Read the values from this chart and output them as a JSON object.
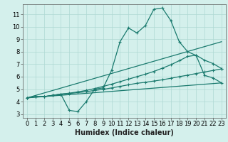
{
  "x_humidex": [
    0,
    1,
    2,
    3,
    4,
    5,
    6,
    7,
    8,
    9,
    10,
    11,
    12,
    13,
    14,
    15,
    16,
    17,
    18,
    19,
    20,
    21,
    22,
    23
  ],
  "line1_y": [
    4.3,
    4.4,
    4.4,
    4.5,
    4.6,
    3.3,
    3.2,
    4.0,
    5.0,
    5.1,
    6.5,
    8.8,
    9.9,
    9.5,
    10.1,
    11.4,
    11.5,
    10.5,
    8.8,
    8.0,
    7.7,
    6.1,
    5.9,
    5.5
  ],
  "line2_y": [
    4.3,
    4.4,
    4.4,
    4.5,
    4.6,
    4.65,
    4.72,
    4.8,
    4.9,
    4.98,
    5.1,
    5.22,
    5.35,
    5.47,
    5.55,
    5.65,
    5.75,
    5.87,
    6.0,
    6.12,
    6.25,
    6.37,
    6.5,
    6.62
  ],
  "line3_y": [
    4.3,
    4.4,
    4.4,
    4.5,
    4.6,
    4.68,
    4.78,
    4.9,
    5.05,
    5.22,
    5.4,
    5.6,
    5.8,
    6.0,
    6.2,
    6.42,
    6.68,
    6.95,
    7.28,
    7.62,
    7.72,
    7.32,
    7.05,
    6.65
  ],
  "line_color": "#1a7a6e",
  "bg_color": "#d4f0ec",
  "grid_color": "#aed8d3",
  "xlabel": "Humidex (Indice chaleur)",
  "xlim": [
    -0.5,
    23.5
  ],
  "ylim": [
    2.7,
    11.8
  ],
  "yticks": [
    3,
    4,
    5,
    6,
    7,
    8,
    9,
    10,
    11
  ],
  "xticks": [
    0,
    1,
    2,
    3,
    4,
    5,
    6,
    7,
    8,
    9,
    10,
    11,
    12,
    13,
    14,
    15,
    16,
    17,
    18,
    19,
    20,
    21,
    22,
    23
  ],
  "xlabel_fontsize": 7,
  "tick_fontsize": 6,
  "linewidth": 0.9,
  "marker": "+",
  "markersize": 3,
  "markeredgewidth": 0.8
}
